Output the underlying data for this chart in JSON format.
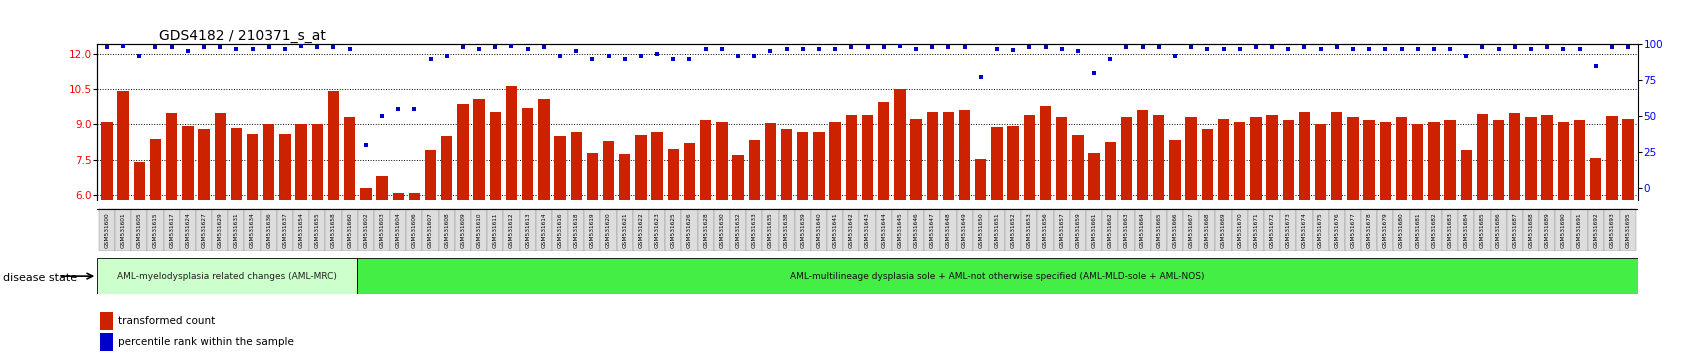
{
  "title": "GDS4182 / 210371_s_at",
  "ylim_left": [
    5.8,
    12.4
  ],
  "ylim_right": [
    -8,
    100
  ],
  "yticks_left": [
    6,
    7.5,
    9,
    10.5,
    12
  ],
  "yticks_right": [
    0,
    25,
    50,
    75,
    100
  ],
  "bar_color": "#cc2200",
  "dot_color": "#0000cc",
  "group1_label": "AML-myelodysplasia related changes (AML-MRC)",
  "group2_label": "AML-multilineage dysplasia sole + AML-not otherwise specified (AML-MLD-sole + AML-NOS)",
  "disease_state_label": "disease state",
  "legend_bar": "transformed count",
  "legend_dot": "percentile rank within the sample",
  "samples": [
    "GSM531600",
    "GSM531601",
    "GSM531605",
    "GSM531615",
    "GSM531617",
    "GSM531624",
    "GSM531627",
    "GSM531629",
    "GSM531631",
    "GSM531634",
    "GSM531636",
    "GSM531637",
    "GSM531654",
    "GSM531655",
    "GSM531658",
    "GSM531660",
    "GSM531602",
    "GSM531603",
    "GSM531604",
    "GSM531606",
    "GSM531607",
    "GSM531608",
    "GSM531609",
    "GSM531610",
    "GSM531611",
    "GSM531612",
    "GSM531613",
    "GSM531614",
    "GSM531616",
    "GSM531618",
    "GSM531619",
    "GSM531620",
    "GSM531621",
    "GSM531622",
    "GSM531623",
    "GSM531625",
    "GSM531626",
    "GSM531628",
    "GSM531630",
    "GSM531632",
    "GSM531633",
    "GSM531635",
    "GSM531638",
    "GSM531639",
    "GSM531640",
    "GSM531641",
    "GSM531642",
    "GSM531643",
    "GSM531644",
    "GSM531645",
    "GSM531646",
    "GSM531647",
    "GSM531648",
    "GSM531649",
    "GSM531650",
    "GSM531651",
    "GSM531652",
    "GSM531653",
    "GSM531656",
    "GSM531657",
    "GSM531659",
    "GSM531661",
    "GSM531662",
    "GSM531663",
    "GSM531664",
    "GSM531665",
    "GSM531666",
    "GSM531667",
    "GSM531668",
    "GSM531669",
    "GSM531670",
    "GSM531671",
    "GSM531672",
    "GSM531673",
    "GSM531674",
    "GSM531675",
    "GSM531676",
    "GSM531677",
    "GSM531678",
    "GSM531679",
    "GSM531680",
    "GSM531681",
    "GSM531682",
    "GSM531683",
    "GSM531684",
    "GSM531685",
    "GSM531686",
    "GSM531687",
    "GSM531688",
    "GSM531689",
    "GSM531690",
    "GSM531691",
    "GSM531692",
    "GSM531693",
    "GSM531695"
  ],
  "bar_values": [
    9.1,
    10.4,
    7.4,
    8.4,
    9.5,
    8.95,
    8.8,
    9.5,
    8.85,
    8.6,
    9.0,
    8.6,
    9.0,
    9.0,
    10.4,
    9.3,
    6.3,
    6.8,
    6.1,
    6.1,
    7.9,
    8.5,
    9.85,
    10.1,
    9.55,
    10.65,
    9.7,
    10.1,
    8.5,
    8.7,
    7.8,
    8.3,
    7.75,
    8.55,
    8.7,
    7.95,
    8.2,
    9.2,
    9.1,
    7.7,
    8.35,
    9.05,
    8.8,
    8.7,
    8.7,
    9.1,
    9.4,
    9.4,
    9.95,
    10.5,
    9.25,
    9.55,
    9.55,
    9.6,
    7.55,
    8.9,
    8.95,
    9.4,
    9.8,
    9.3,
    8.55,
    7.8,
    8.25,
    9.3,
    9.6,
    9.4,
    8.35,
    9.3,
    8.8,
    9.25,
    9.1,
    9.3,
    9.4,
    9.2,
    9.55,
    9.0,
    9.55,
    9.3,
    9.2,
    9.1,
    9.3,
    9.0,
    9.1,
    9.2,
    7.9,
    9.45,
    9.2,
    9.5,
    9.3,
    9.4,
    9.1,
    9.2,
    7.6,
    9.35,
    9.25
  ],
  "dot_values": [
    98,
    99,
    92,
    98,
    98,
    95,
    98,
    98,
    97,
    97,
    98,
    97,
    99,
    98,
    98,
    97,
    30,
    50,
    55,
    55,
    90,
    92,
    98,
    97,
    98,
    99,
    97,
    98,
    92,
    95,
    90,
    92,
    90,
    92,
    93,
    90,
    90,
    97,
    97,
    92,
    92,
    95,
    97,
    97,
    97,
    97,
    98,
    98,
    98,
    99,
    97,
    98,
    98,
    98,
    77,
    97,
    96,
    98,
    98,
    97,
    95,
    80,
    90,
    98,
    98,
    98,
    92,
    98,
    97,
    97,
    97,
    98,
    98,
    97,
    98,
    97,
    98,
    97,
    97,
    97,
    97,
    97,
    97,
    97,
    92,
    98,
    97,
    98,
    97,
    98,
    97,
    97,
    85,
    98,
    98
  ],
  "group1_count": 16,
  "group2_count": 79,
  "group1_color": "#ccffcc",
  "group2_color": "#44ee44",
  "bg_color": "#ffffff"
}
